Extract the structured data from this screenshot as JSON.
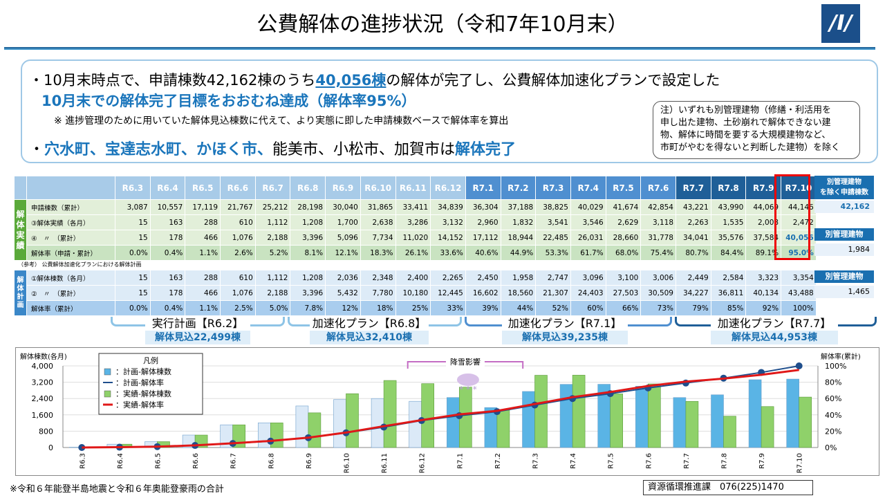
{
  "title": "公費解体の進捗状況（令和7年10月末）",
  "summary": {
    "l1_a": "・10月末時点で、申請棟数42,162棟のうち",
    "l1_b": "40,056棟",
    "l1_c": "の解体が完了し、公費解体加速化プランで設定した",
    "l2": "10月末での解体完了目標をおおむね達成（解体率95%）",
    "l3": "※ 進捗管理のために用いていた解体見込棟数に代えて、より実態に即した申請棟数ベースで解体率を算出",
    "l4_a": "・",
    "l4_b": "穴水町、宝達志水町、かほく市、",
    "l4_c": "能美市、小松市、加賀市は",
    "l4_d": "解体完了",
    "note": "注）いずれも別管理建物（修繕・利活用を\n申し出た建物、土砂崩れで解体できない建\n物、解体に時間を要する大規模建物など、\n市町がやむを得ないと判断した建物）を除く"
  },
  "months": [
    "R6.3",
    "R6.4",
    "R6.5",
    "R6.6",
    "R6.7",
    "R6.8",
    "R6.9",
    "R6.10",
    "R6.11",
    "R6.12",
    "R7.1",
    "R7.2",
    "R7.3",
    "R7.4",
    "R7.5",
    "R7.6",
    "R7.7",
    "R7.8",
    "R7.9",
    "R7.10"
  ],
  "header_colors": [
    "#a8cbe8",
    "#a8cbe8",
    "#a8cbe8",
    "#a8cbe8",
    "#a8cbe8",
    "#a8cbe8",
    "#a8cbe8",
    "#a8cbe8",
    "#a8cbe8",
    "#a8cbe8",
    "#4f8fd0",
    "#4f8fd0",
    "#4f8fd0",
    "#4f8fd0",
    "#4f8fd0",
    "#4f8fd0",
    "#1f5f98",
    "#1f5f98",
    "#1f5f98",
    "#1f5f98"
  ],
  "actual": {
    "side": "解体実績",
    "rows": [
      {
        "label": "申請棟数（累計）",
        "values": [
          "3,087",
          "10,557",
          "17,119",
          "21,767",
          "25,212",
          "28,198",
          "30,040",
          "31,865",
          "33,411",
          "34,839",
          "36,304",
          "37,188",
          "38,825",
          "40,029",
          "41,674",
          "42,854",
          "43,221",
          "43,990",
          "44,069",
          "44,146"
        ],
        "extra": "42,162"
      },
      {
        "label": "③解体実績（各月）",
        "values": [
          "15",
          "163",
          "288",
          "610",
          "1,112",
          "1,208",
          "1,700",
          "2,638",
          "3,286",
          "3,132",
          "2,960",
          "1,832",
          "3,541",
          "3,546",
          "2,629",
          "3,118",
          "2,263",
          "1,535",
          "2,008",
          "2,472"
        ],
        "extra": ""
      },
      {
        "label": "④　〃　（累計）",
        "values": [
          "15",
          "178",
          "466",
          "1,076",
          "2,188",
          "3,396",
          "5,096",
          "7,734",
          "11,020",
          "14,152",
          "17,112",
          "18,944",
          "22,485",
          "26,031",
          "28,660",
          "31,778",
          "34,041",
          "35,576",
          "37,584",
          "40,056"
        ],
        "extra": ""
      },
      {
        "label": "解体率（申請・累計）",
        "values": [
          "0.0%",
          "0.4%",
          "1.1%",
          "2.6%",
          "5.2%",
          "8.1%",
          "12.1%",
          "18.3%",
          "26.1%",
          "33.6%",
          "40.6%",
          "44.9%",
          "53.3%",
          "61.7%",
          "68.0%",
          "75.4%",
          "80.7%",
          "84.4%",
          "89.1%",
          "95.0%"
        ],
        "extra": "1,984"
      }
    ],
    "side_head_1": "別管理建物\nを除く申請棟数",
    "side_head_2": "別管理建物"
  },
  "ref_note": "（参考） 公費解体加速化プランにおける解体計画",
  "plan": {
    "side": "解体計画",
    "rows": [
      {
        "label": "①解体棟数（各月）",
        "values": [
          "15",
          "163",
          "288",
          "610",
          "1,112",
          "1,208",
          "2,036",
          "2,348",
          "2,400",
          "2,265",
          "2,450",
          "1,958",
          "2,747",
          "3,096",
          "3,100",
          "3,006",
          "2,449",
          "2,584",
          "3,323",
          "3,354"
        ]
      },
      {
        "label": "②　〃　（累計）",
        "values": [
          "15",
          "178",
          "466",
          "1,076",
          "2,188",
          "3,396",
          "5,432",
          "7,780",
          "10,180",
          "12,445",
          "16,602",
          "18,560",
          "21,307",
          "24,403",
          "27,503",
          "30,509",
          "34,227",
          "36,811",
          "40,134",
          "43,488"
        ]
      },
      {
        "label": "解体率（累計）",
        "values": [
          "0.0%",
          "0.4%",
          "1.1%",
          "2.5%",
          "5.0%",
          "7.8%",
          "12%",
          "18%",
          "25%",
          "33%",
          "39%",
          "44%",
          "52%",
          "60%",
          "66%",
          "73%",
          "79%",
          "85%",
          "92%",
          "100%"
        ]
      }
    ],
    "side_head": "別管理建物",
    "side_value": "1,465"
  },
  "plans": [
    {
      "name": "実行計画【R6.2】",
      "sub": "解体見込22,499棟",
      "color": "#8ec4e6"
    },
    {
      "name": "加速化プラン【R6.8】",
      "sub": "解体見込32,410棟",
      "color": "#8ec4e6"
    },
    {
      "name": "加速化プラン【R7.1】",
      "sub": "解体見込39,235棟",
      "color": "#4f8fd0"
    },
    {
      "name": "加速化プラン【R7.7】",
      "sub": "解体見込44,953棟",
      "color": "#1f5f98"
    }
  ],
  "chart_data": {
    "type": "bar",
    "categories": [
      "R6.3",
      "R6.4",
      "R6.5",
      "R6.6",
      "R6.7",
      "R6.8",
      "R6.9",
      "R6.10",
      "R6.11",
      "R6.12",
      "R7.1",
      "R7.2",
      "R7.3",
      "R7.4",
      "R7.5",
      "R7.6",
      "R7.7",
      "R7.8",
      "R7.9",
      "R7.10"
    ],
    "ylabel_left": "解体棟数(各月)",
    "ylabel_right": "解体率(累計)",
    "ylim_left": [
      0,
      4000
    ],
    "left_ticks": [
      "0",
      "800",
      "1,600",
      "2,400",
      "3,200",
      "4,000"
    ],
    "ylim_right": [
      0,
      100
    ],
    "right_ticks": [
      "0%",
      "20%",
      "40%",
      "60%",
      "80%",
      "100%"
    ],
    "legend_title": "凡例",
    "series": [
      {
        "name": "：計画-解体棟数",
        "kind": "bar",
        "color": "#5ab4e5",
        "values": [
          15,
          163,
          288,
          610,
          1112,
          1208,
          2036,
          2348,
          2400,
          2265,
          2450,
          1958,
          2747,
          3096,
          3100,
          3006,
          2449,
          2584,
          3323,
          3354
        ]
      },
      {
        "name": "：計画-解体率",
        "kind": "line",
        "color": "#1f4e8c",
        "values": [
          0.0,
          0.4,
          1.1,
          2.5,
          5.0,
          7.8,
          12,
          18,
          25,
          33,
          39,
          44,
          52,
          60,
          66,
          73,
          79,
          85,
          92,
          100
        ]
      },
      {
        "name": "：実績-解体棟数",
        "kind": "bar",
        "color": "#8fd16a",
        "values": [
          15,
          163,
          288,
          610,
          1112,
          1208,
          1700,
          2638,
          3286,
          3132,
          2960,
          1832,
          3541,
          3546,
          2629,
          3118,
          2263,
          1535,
          2008,
          2472
        ]
      },
      {
        "name": "：実績-解体率",
        "kind": "line",
        "color": "#e01818",
        "values": [
          0.0,
          0.4,
          1.1,
          2.6,
          5.2,
          8.1,
          12.1,
          18.3,
          26.1,
          33.6,
          40.6,
          44.9,
          53.3,
          61.7,
          68.0,
          75.4,
          80.7,
          84.4,
          89.1,
          95.0
        ]
      }
    ],
    "annotation": "降雪影響"
  },
  "footnote": "※令和６年能登半島地震と令和６年奥能登豪雨の合計",
  "contact": "資源循環推進課　076(225)1470",
  "logo_text": "ﾊﾞ"
}
